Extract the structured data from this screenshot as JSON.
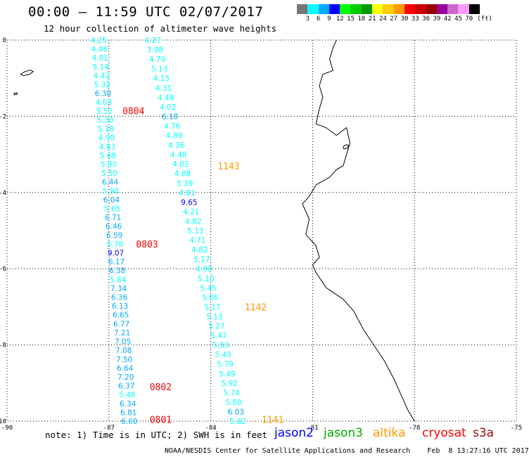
{
  "header": {
    "title": "00:00 – 11:59 UTC 02/07/2017",
    "subtitle": "12 hour collection of altimeter wave heights"
  },
  "colorbar": {
    "colors": [
      "#777777",
      "#00ffff",
      "#00aaff",
      "#0000ff",
      "#00ff00",
      "#00cc00",
      "#009900",
      "#ffff00",
      "#ffcc00",
      "#ff9900",
      "#ff0000",
      "#cc0000",
      "#990000",
      "#990099",
      "#cc66cc",
      "#ff99ff",
      "#000000"
    ],
    "labels": [
      "3",
      "6",
      "9",
      "12",
      "15",
      "18",
      "21",
      "24",
      "27",
      "30",
      "33",
      "36",
      "39",
      "42",
      "45",
      "70"
    ],
    "unit": "(ft)"
  },
  "map": {
    "lon_ticks": [
      "-90",
      "-87",
      "-84",
      "-81",
      "-78",
      "-75"
    ],
    "lat_ticks": [
      "0",
      "-2",
      "-4",
      "-6",
      "-8",
      "-10"
    ]
  },
  "passes": [
    {
      "time": "0804",
      "sat": "cryosat",
      "color": "#ff0000",
      "lon": -86.6,
      "lat": -1.85
    },
    {
      "time": "0803",
      "sat": "cryosat",
      "color": "#ff0000",
      "lon": -86.2,
      "lat": -5.35
    },
    {
      "time": "0802",
      "sat": "cryosat",
      "color": "#ff0000",
      "lon": -85.8,
      "lat": -9.1
    },
    {
      "time": "0801",
      "sat": "cryosat",
      "color": "#ff0000",
      "lon": -85.8,
      "lat": -9.95
    },
    {
      "time": "1143",
      "sat": "altika",
      "color": "#ff9900",
      "lon": -83.8,
      "lat": -3.3
    },
    {
      "time": "1142",
      "sat": "altika",
      "color": "#ff9900",
      "lon": -83.0,
      "lat": -7.0
    },
    {
      "time": "1141",
      "sat": "altika",
      "color": "#ff9900",
      "lon": -82.5,
      "lat": -9.95
    }
  ],
  "tracks": [
    {
      "name": "track-west",
      "lon_start": -87.3,
      "lat_start": 0.0,
      "lon_end": -86.4,
      "lat_end": -10.0,
      "values": [
        "4.25",
        "4.46",
        "4.81",
        "5.14",
        "4.42",
        "5.32",
        "6.30",
        "4.63",
        "5.52",
        "5.30",
        "5.18",
        "4.90",
        "4.83",
        "5.68",
        "5.93",
        "5.50",
        "6.44",
        "5.90",
        "6.04",
        "5.65",
        "6.71",
        "6.46",
        "6.59",
        "5.78",
        "9.07",
        "6.17",
        "6.38",
        "5.84",
        "7.34",
        "6.36",
        "6.13",
        "6.65",
        "6.77",
        "7.21",
        "7.05",
        "7.08",
        "7.50",
        "6.64",
        "7.20",
        "6.37",
        "5.48",
        "6.34",
        "6.81",
        "6.60"
      ],
      "colors": [
        "#00ffff",
        "#00ffff",
        "#00ffff",
        "#00ffff",
        "#00ffff",
        "#00ffff",
        "#00aaff",
        "#00ffff",
        "#00ffff",
        "#00ffff",
        "#00ffff",
        "#00ffff",
        "#00ffff",
        "#00ffff",
        "#00ffff",
        "#00ffff",
        "#00aaff",
        "#00ffff",
        "#00aaff",
        "#00ffff",
        "#00aaff",
        "#00aaff",
        "#00aaff",
        "#00ffff",
        "#0000ff",
        "#00aaff",
        "#00aaff",
        "#00ffff",
        "#00aaff",
        "#00aaff",
        "#00aaff",
        "#00aaff",
        "#00aaff",
        "#00aaff",
        "#00aaff",
        "#00aaff",
        "#00aaff",
        "#00aaff",
        "#00aaff",
        "#00aaff",
        "#00ffff",
        "#00aaff",
        "#00aaff",
        "#00aaff"
      ]
    },
    {
      "name": "track-east",
      "lon_start": -85.7,
      "lat_start": 0.0,
      "lon_end": -83.2,
      "lat_end": -10.0,
      "values": [
        "4.27",
        "3.98",
        "4.79",
        "5.13",
        "4.15",
        "4.31",
        "4.48",
        "4.02",
        "6.18",
        "4.76",
        "4.89",
        "4.36",
        "4.48",
        "4.03",
        "4.88",
        "5.39",
        "4.81",
        "9.65",
        "4.21",
        "4.82",
        "5.13",
        "4.71",
        "4.82",
        "5.17",
        "4.80",
        "5.10",
        "5.45",
        "5.05",
        "5.17",
        "5.13",
        "5.27",
        "5.47",
        "5.53",
        "5.43",
        "5.79",
        "5.49",
        "5.92",
        "5.74",
        "5.80",
        "6.03",
        "5.82"
      ],
      "colors": [
        "#00ffff",
        "#00ffff",
        "#00ffff",
        "#00ffff",
        "#00ffff",
        "#00ffff",
        "#00ffff",
        "#00ffff",
        "#00aaff",
        "#00ffff",
        "#00ffff",
        "#00ffff",
        "#00ffff",
        "#00ffff",
        "#00ffff",
        "#00ffff",
        "#00ffff",
        "#0000ff",
        "#00ffff",
        "#00ffff",
        "#00ffff",
        "#00ffff",
        "#00ffff",
        "#00ffff",
        "#00ffff",
        "#00ffff",
        "#00ffff",
        "#00ffff",
        "#00ffff",
        "#00ffff",
        "#00ffff",
        "#00ffff",
        "#00ffff",
        "#00ffff",
        "#00ffff",
        "#00ffff",
        "#00ffff",
        "#00ffff",
        "#00ffff",
        "#00aaff",
        "#00ffff"
      ]
    }
  ],
  "legend": {
    "note": "note: 1) Time is in UTC; 2) SWH is in feet",
    "satellites": [
      {
        "label": "jason2",
        "color": "#0000ff"
      },
      {
        "label": "jason3",
        "color": "#00aa00"
      },
      {
        "label": "altika",
        "color": "#ff9900"
      },
      {
        "label": "cryosat",
        "color": "#ff0000"
      },
      {
        "label": "s3a",
        "color": "#990000"
      }
    ]
  },
  "footer": {
    "credit": "NOAA/NESDIS Center for Satellite Applications and Research    Feb  8 13:27:16 UTC 2017"
  }
}
